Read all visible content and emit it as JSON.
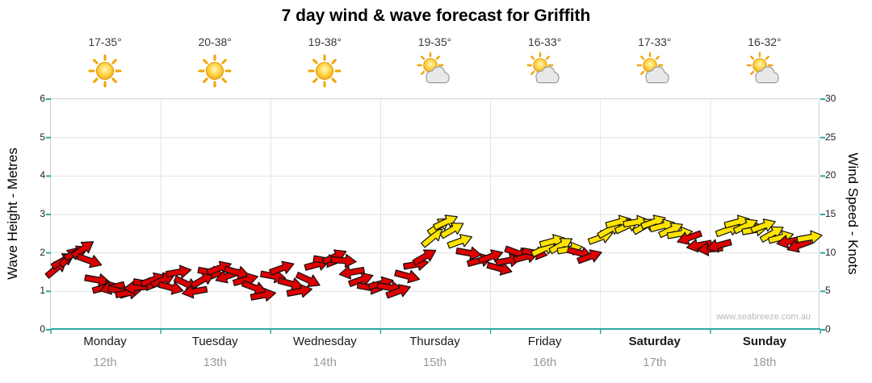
{
  "title": "7 day wind & wave forecast for Griffith",
  "watermark": "www.seabreeze.com.au",
  "chart_data": {
    "type": "scatter",
    "subtype": "wind-arrow-forecast",
    "title": "7 day wind & wave forecast for Griffith",
    "left_axis": {
      "label": "Wave Height - Metres",
      "ticks": [
        0,
        1,
        2,
        3,
        4,
        5,
        6
      ],
      "range": [
        0,
        6
      ]
    },
    "right_axis": {
      "label": "Wind Speed - Knots",
      "ticks": [
        0,
        5,
        10,
        15,
        20,
        25,
        30
      ],
      "range": [
        0,
        30
      ]
    },
    "scale_note": "wave metres equivalent = wind knots / 5; arrows plotted on shared scale",
    "grid": true,
    "days": [
      {
        "name": "Monday",
        "date": "12th",
        "temp": "17-35°",
        "icon": "sunny",
        "bold": false
      },
      {
        "name": "Tuesday",
        "date": "13th",
        "temp": "20-38°",
        "icon": "sunny",
        "bold": false
      },
      {
        "name": "Wednesday",
        "date": "14th",
        "temp": "19-38°",
        "icon": "sunny",
        "bold": false
      },
      {
        "name": "Thursday",
        "date": "15th",
        "temp": "19-35°",
        "icon": "partly-cloudy",
        "bold": false
      },
      {
        "name": "Friday",
        "date": "16th",
        "temp": "16-33°",
        "icon": "partly-cloudy",
        "bold": false
      },
      {
        "name": "Saturday",
        "date": "17th",
        "temp": "17-33°",
        "icon": "partly-cloudy",
        "bold": true
      },
      {
        "name": "Sunday",
        "date": "18th",
        "temp": "16-32°",
        "icon": "partly-cloudy",
        "bold": true
      }
    ],
    "colors": {
      "red": "#dc0000",
      "yellow": "#ffe400",
      "axis": "#2fa8a8",
      "grid": "#e3e3e3",
      "border": "#cfcfcf"
    },
    "point_format": [
      "day_x (0-7)",
      "wind_knots",
      "arrow_angle_deg (0=east, negative=up)",
      "color"
    ],
    "points": [
      [
        0.05,
        8.0,
        -40,
        "red"
      ],
      [
        0.11,
        9.0,
        -30,
        "red"
      ],
      [
        0.17,
        9.5,
        -45,
        "red"
      ],
      [
        0.23,
        10.0,
        -25,
        "red"
      ],
      [
        0.29,
        10.5,
        -35,
        "red"
      ],
      [
        0.35,
        9.0,
        20,
        "red"
      ],
      [
        0.42,
        6.5,
        10,
        "red"
      ],
      [
        0.49,
        5.5,
        -15,
        "red"
      ],
      [
        0.56,
        5.5,
        165,
        "red"
      ],
      [
        0.63,
        5.0,
        15,
        "red"
      ],
      [
        0.7,
        4.8,
        -10,
        "red"
      ],
      [
        0.78,
        5.5,
        175,
        "red"
      ],
      [
        0.86,
        6.0,
        10,
        "red"
      ],
      [
        0.93,
        6.5,
        -20,
        "red"
      ],
      [
        1.02,
        6.5,
        -25,
        "red"
      ],
      [
        1.09,
        5.5,
        15,
        "red"
      ],
      [
        1.16,
        7.5,
        -10,
        "red"
      ],
      [
        1.23,
        6.0,
        25,
        "red"
      ],
      [
        1.31,
        5.0,
        170,
        "red"
      ],
      [
        1.38,
        6.5,
        -30,
        "red"
      ],
      [
        1.45,
        7.5,
        10,
        "red"
      ],
      [
        1.53,
        8.0,
        -20,
        "red"
      ],
      [
        1.61,
        7.0,
        160,
        "red"
      ],
      [
        1.69,
        7.5,
        15,
        "red"
      ],
      [
        1.77,
        6.5,
        -15,
        "red"
      ],
      [
        1.85,
        5.5,
        20,
        "red"
      ],
      [
        1.93,
        4.5,
        -10,
        "red"
      ],
      [
        2.02,
        7.0,
        10,
        "red"
      ],
      [
        2.1,
        8.0,
        -20,
        "red"
      ],
      [
        2.18,
        6.0,
        15,
        "red"
      ],
      [
        2.26,
        5.0,
        -10,
        "red"
      ],
      [
        2.34,
        6.5,
        25,
        "red"
      ],
      [
        2.42,
        8.5,
        -15,
        "red"
      ],
      [
        2.5,
        9.0,
        10,
        "red"
      ],
      [
        2.58,
        9.5,
        -25,
        "red"
      ],
      [
        2.66,
        9.0,
        5,
        "red"
      ],
      [
        2.74,
        7.5,
        170,
        "red"
      ],
      [
        2.82,
        6.5,
        -20,
        "red"
      ],
      [
        2.9,
        5.5,
        10,
        "red"
      ],
      [
        3.0,
        6.0,
        -15,
        "red"
      ],
      [
        3.08,
        5.5,
        10,
        "red"
      ],
      [
        3.16,
        5.0,
        -20,
        "red"
      ],
      [
        3.24,
        7.0,
        15,
        "red"
      ],
      [
        3.32,
        8.5,
        -10,
        "red"
      ],
      [
        3.4,
        9.5,
        -30,
        "red"
      ],
      [
        3.47,
        12.0,
        -40,
        "yellow"
      ],
      [
        3.53,
        13.5,
        -35,
        "yellow"
      ],
      [
        3.59,
        14.0,
        -25,
        "yellow"
      ],
      [
        3.65,
        13.0,
        -30,
        "yellow"
      ],
      [
        3.72,
        11.5,
        -20,
        "yellow"
      ],
      [
        3.8,
        10.0,
        10,
        "red"
      ],
      [
        3.9,
        9.0,
        -15,
        "red"
      ],
      [
        4.0,
        9.5,
        -20,
        "red"
      ],
      [
        4.08,
        8.0,
        15,
        "red"
      ],
      [
        4.16,
        9.0,
        -10,
        "red"
      ],
      [
        4.24,
        10.0,
        20,
        "red"
      ],
      [
        4.32,
        9.5,
        -15,
        "red"
      ],
      [
        4.4,
        10.0,
        10,
        "red"
      ],
      [
        4.48,
        10.5,
        -25,
        "yellow"
      ],
      [
        4.56,
        11.5,
        -15,
        "yellow"
      ],
      [
        4.64,
        11.0,
        -30,
        "yellow"
      ],
      [
        4.72,
        10.5,
        -10,
        "yellow"
      ],
      [
        4.81,
        10.0,
        15,
        "red"
      ],
      [
        4.9,
        9.5,
        -20,
        "red"
      ],
      [
        5.0,
        12.0,
        -20,
        "yellow"
      ],
      [
        5.08,
        13.0,
        -30,
        "yellow"
      ],
      [
        5.16,
        14.0,
        -15,
        "yellow"
      ],
      [
        5.24,
        13.5,
        -25,
        "yellow"
      ],
      [
        5.32,
        14.0,
        -10,
        "yellow"
      ],
      [
        5.4,
        13.5,
        -30,
        "yellow"
      ],
      [
        5.48,
        14.0,
        -20,
        "yellow"
      ],
      [
        5.56,
        13.5,
        -15,
        "yellow"
      ],
      [
        5.64,
        13.0,
        -25,
        "yellow"
      ],
      [
        5.72,
        12.5,
        -10,
        "yellow"
      ],
      [
        5.81,
        12.0,
        160,
        "red"
      ],
      [
        5.9,
        11.0,
        170,
        "red"
      ],
      [
        6.0,
        10.5,
        175,
        "red"
      ],
      [
        6.08,
        11.0,
        165,
        "red"
      ],
      [
        6.16,
        13.0,
        -20,
        "yellow"
      ],
      [
        6.24,
        14.0,
        -15,
        "yellow"
      ],
      [
        6.32,
        13.5,
        -25,
        "yellow"
      ],
      [
        6.4,
        13.0,
        -10,
        "yellow"
      ],
      [
        6.48,
        13.5,
        -20,
        "yellow"
      ],
      [
        6.56,
        12.5,
        -30,
        "yellow"
      ],
      [
        6.64,
        12.0,
        -15,
        "yellow"
      ],
      [
        6.72,
        11.5,
        170,
        "red"
      ],
      [
        6.81,
        11.0,
        160,
        "red"
      ],
      [
        6.9,
        12.0,
        -10,
        "yellow"
      ]
    ]
  }
}
